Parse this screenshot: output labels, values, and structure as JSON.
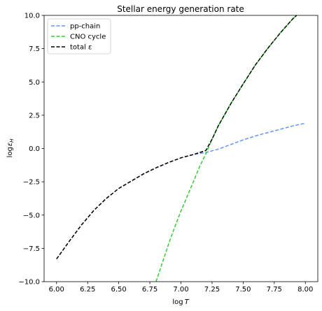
{
  "chart_data": {
    "type": "line",
    "title": "Stellar energy generation rate",
    "xlabel": "log",
    "xlabel_var": "T",
    "ylabel": "log",
    "ylabel_var": "ε",
    "ylabel_sub": "H",
    "xlim": [
      5.9,
      8.1
    ],
    "ylim": [
      -10.0,
      10.0
    ],
    "xticks": [
      "6.00",
      "6.25",
      "6.50",
      "6.75",
      "7.00",
      "7.25",
      "7.50",
      "7.75",
      "8.00"
    ],
    "yticks": [
      "−10.0",
      "−7.5",
      "−5.0",
      "−2.5",
      "0.0",
      "2.5",
      "5.0",
      "7.5",
      "10.0"
    ],
    "legend_position": "top-left",
    "grid": false,
    "series": [
      {
        "name": "pp-chain",
        "color": "#6495ed",
        "x": [
          6.0,
          6.1,
          6.2,
          6.3,
          6.4,
          6.5,
          6.6,
          6.7,
          6.8,
          6.9,
          7.0,
          7.1,
          7.2,
          7.3,
          7.4,
          7.5,
          7.6,
          7.7,
          7.8,
          7.9,
          8.0
        ],
        "y": [
          -8.3,
          -7.0,
          -5.75,
          -4.65,
          -3.75,
          -3.0,
          -2.45,
          -1.9,
          -1.45,
          -1.05,
          -0.7,
          -0.45,
          -0.3,
          -0.05,
          0.3,
          0.65,
          0.95,
          1.2,
          1.45,
          1.7,
          1.9
        ]
      },
      {
        "name": "CNO cycle",
        "color": "#32cd32",
        "x": [
          6.8,
          6.85,
          6.9,
          6.95,
          7.0,
          7.05,
          7.1,
          7.15,
          7.2,
          7.25,
          7.3,
          7.4,
          7.5,
          7.6,
          7.7,
          7.8,
          7.9,
          7.93
        ],
        "y": [
          -10.0,
          -8.6,
          -7.2,
          -5.9,
          -4.7,
          -3.6,
          -2.5,
          -1.35,
          -0.4,
          0.7,
          1.7,
          3.35,
          4.85,
          6.3,
          7.55,
          8.7,
          9.75,
          10.0
        ]
      },
      {
        "name": "total ε",
        "color": "#000000",
        "x": [
          6.0,
          6.1,
          6.2,
          6.3,
          6.4,
          6.5,
          6.6,
          6.7,
          6.8,
          6.9,
          7.0,
          7.1,
          7.2,
          7.25,
          7.3,
          7.4,
          7.5,
          7.6,
          7.7,
          7.8,
          7.9,
          7.93
        ],
        "y": [
          -8.3,
          -7.0,
          -5.75,
          -4.65,
          -3.75,
          -3.0,
          -2.45,
          -1.9,
          -1.45,
          -1.05,
          -0.7,
          -0.45,
          -0.15,
          0.7,
          1.7,
          3.35,
          4.85,
          6.3,
          7.55,
          8.7,
          9.75,
          10.0
        ]
      }
    ]
  }
}
